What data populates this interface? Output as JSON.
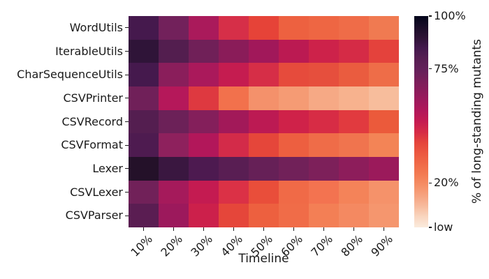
{
  "chart_data": {
    "type": "heatmap",
    "title": "",
    "xlabel": "Timeline",
    "ylabel": "",
    "colormap": "rocket_r",
    "grid": false,
    "legend_position": "right-colorbar",
    "background_color": "#ffffff",
    "axis_text_color": "#1a1a1a",
    "x_categories": [
      "10%",
      "20%",
      "30%",
      "40%",
      "50%",
      "60%",
      "70%",
      "80%",
      "90%"
    ],
    "y_categories": [
      "WordUtils",
      "IterableUtils",
      "CharSequenceUtils",
      "CSVPrinter",
      "CSVRecord",
      "CSVFormat",
      "Lexer",
      "CSVLexer",
      "CSVParser"
    ],
    "values_percent_estimated": [
      [
        85,
        72,
        57,
        45,
        40,
        33,
        32,
        30,
        25
      ],
      [
        90,
        81,
        72,
        65,
        59,
        53,
        47,
        45,
        40
      ],
      [
        85,
        65,
        57,
        50,
        45,
        39,
        38,
        35,
        30
      ],
      [
        72,
        54,
        43,
        28,
        19,
        17,
        14,
        12,
        10
      ],
      [
        80,
        73,
        67,
        59,
        53,
        47,
        44,
        41,
        35
      ],
      [
        82,
        64,
        55,
        46,
        40,
        33,
        30,
        27,
        23
      ],
      [
        92,
        87,
        82,
        79,
        75,
        72,
        69,
        64,
        61
      ],
      [
        72,
        58,
        50,
        43,
        37,
        30,
        27,
        23,
        19
      ],
      [
        79,
        60,
        48,
        40,
        33,
        30,
        24,
        22,
        18
      ]
    ],
    "cell_colors": [
      [
        "#45194d",
        "#72215b",
        "#aa1a5b",
        "#d62f48",
        "#e64338",
        "#ed6140",
        "#ee6643",
        "#ef6c48",
        "#f07a51"
      ],
      [
        "#2f1438",
        "#531e4f",
        "#702058",
        "#8a1c59",
        "#a1185a",
        "#bb1a52",
        "#cd224a",
        "#d52b46",
        "#e4423c"
      ],
      [
        "#45194d",
        "#8a1e5b",
        "#aa195b",
        "#c51c50",
        "#d62e47",
        "#e64b3c",
        "#e64f3d",
        "#ea5c3f",
        "#ee6d48"
      ],
      [
        "#702059",
        "#b5185a",
        "#de3940",
        "#f2714c",
        "#f4916b",
        "#f59b74",
        "#f6a985",
        "#f7b28e",
        "#f7bd9c"
      ],
      [
        "#541e50",
        "#6c2158",
        "#841f5b",
        "#a21959",
        "#bc1a53",
        "#cf2249",
        "#d72c45",
        "#e13a3f",
        "#eb5a3b"
      ],
      [
        "#4e1b50",
        "#8e215d",
        "#b2175a",
        "#d32b49",
        "#e5463a",
        "#ed5f40",
        "#ef6c48",
        "#f0744e",
        "#f38456"
      ],
      [
        "#241129",
        "#3a1740",
        "#4d1a50",
        "#591e53",
        "#662057",
        "#712159",
        "#7d205a",
        "#8d1d5b",
        "#9b1a5b"
      ],
      [
        "#712159",
        "#a51a5b",
        "#c41b51",
        "#db3146",
        "#e94e3a",
        "#f06a47",
        "#f37350",
        "#f48359",
        "#f5926a"
      ],
      [
        "#5a1d52",
        "#9c195c",
        "#cc204b",
        "#e5463a",
        "#ed603f",
        "#f06c48",
        "#f37f55",
        "#f48961",
        "#f5966e"
      ]
    ],
    "colorbar": {
      "label": "% of long-standing mutants",
      "ticks": [
        {
          "label": "100%",
          "position_pct_from_top": 0
        },
        {
          "label": "75%",
          "position_pct_from_top": 25
        },
        {
          "label": "20%",
          "position_pct_from_top": 79
        },
        {
          "label": "low",
          "position_pct_from_top": 100
        }
      ],
      "gradient_top_to_bottom": [
        {
          "stop_pct": 0,
          "color": "#03051a"
        },
        {
          "stop_pct": 5,
          "color": "#190d28"
        },
        {
          "stop_pct": 10,
          "color": "#2d1335"
        },
        {
          "stop_pct": 15,
          "color": "#43194d"
        },
        {
          "stop_pct": 20,
          "color": "#561e52"
        },
        {
          "stop_pct": 25,
          "color": "#63205a"
        },
        {
          "stop_pct": 30,
          "color": "#771f5a"
        },
        {
          "stop_pct": 35,
          "color": "#8a1c5b"
        },
        {
          "stop_pct": 40,
          "color": "#9e195c"
        },
        {
          "stop_pct": 45,
          "color": "#b2175a"
        },
        {
          "stop_pct": 50,
          "color": "#c51b51"
        },
        {
          "stop_pct": 55,
          "color": "#d62b46"
        },
        {
          "stop_pct": 60,
          "color": "#e5453b"
        },
        {
          "stop_pct": 65,
          "color": "#ec5840"
        },
        {
          "stop_pct": 70,
          "color": "#f06a47"
        },
        {
          "stop_pct": 75,
          "color": "#f37b52"
        },
        {
          "stop_pct": 80,
          "color": "#f58e65"
        },
        {
          "stop_pct": 85,
          "color": "#f6a380"
        },
        {
          "stop_pct": 90,
          "color": "#f7bb9d"
        },
        {
          "stop_pct": 95,
          "color": "#f9d6c0"
        },
        {
          "stop_pct": 100,
          "color": "#faebdd"
        }
      ]
    }
  }
}
